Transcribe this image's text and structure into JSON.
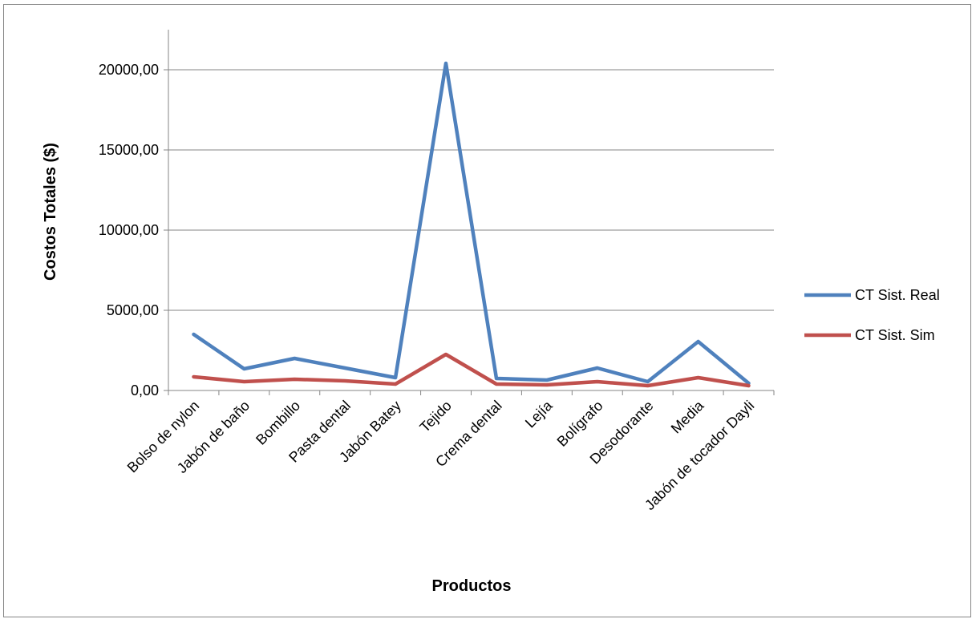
{
  "chart_data": {
    "type": "line",
    "title": "",
    "xlabel": "Productos",
    "ylabel": "Costos Totales ($)",
    "ylim": [
      0,
      22500
    ],
    "y_ticks": [
      0,
      5000,
      10000,
      15000,
      20000
    ],
    "y_tick_labels": [
      "0,00",
      "5000,00",
      "10000,00",
      "15000,00",
      "20000,00"
    ],
    "grid": true,
    "legend_position": "right",
    "categories": [
      "Bolso de nylon",
      "Jabón de baño",
      "Bombillo",
      "Pasta dental",
      "Jabón Batey",
      "Tejido",
      "Crema dental",
      "Lejía",
      "Bolígrafo",
      "Desodorante",
      "Media",
      "Jabón de tocador Dayli"
    ],
    "series": [
      {
        "name": "CT Sist. Real",
        "color": "#4F81BD",
        "values": [
          3500,
          1350,
          2000,
          1400,
          800,
          20400,
          750,
          650,
          1400,
          550,
          3050,
          450
        ]
      },
      {
        "name": "CT Sist. Sim",
        "color": "#C0504D",
        "values": [
          850,
          550,
          700,
          600,
          400,
          2250,
          400,
          350,
          550,
          300,
          800,
          300
        ]
      }
    ]
  }
}
